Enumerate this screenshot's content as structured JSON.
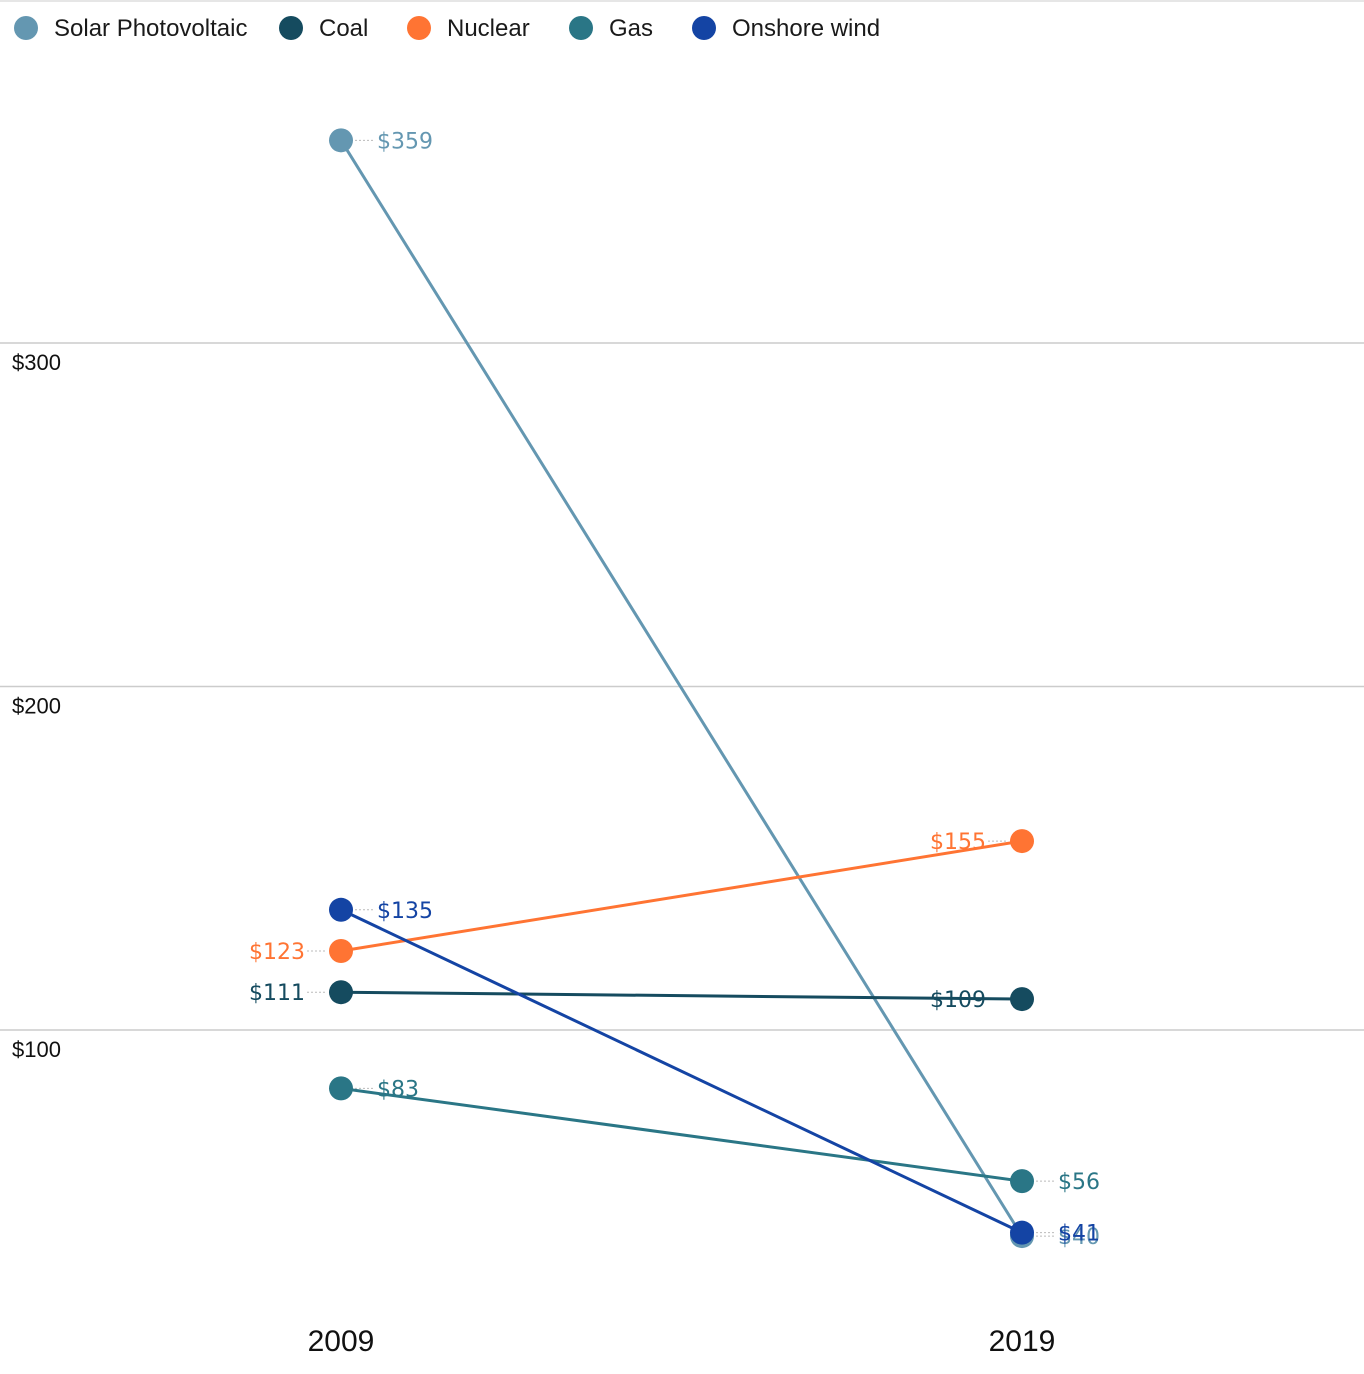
{
  "chart_data": {
    "type": "line",
    "title": "",
    "xlabel": "",
    "ylabel": "",
    "categories": [
      "2009",
      "2019"
    ],
    "ylim": [
      0,
      400
    ],
    "yticks": [
      100,
      200,
      300
    ],
    "ytick_labels": [
      "$100",
      "$200",
      "$300"
    ],
    "grid": true,
    "legend_position": "top-left",
    "series": [
      {
        "name": "Solar Photovoltaic",
        "color": "#6497b1",
        "values": [
          359,
          40
        ],
        "labels": [
          "$359",
          "$40"
        ]
      },
      {
        "name": "Coal",
        "color": "#154b5f",
        "values": [
          111,
          109
        ],
        "labels": [
          "$111",
          "$109"
        ]
      },
      {
        "name": "Nuclear",
        "color": "#ff7433",
        "values": [
          123,
          155
        ],
        "labels": [
          "$123",
          "$155"
        ]
      },
      {
        "name": "Gas",
        "color": "#2a7686",
        "values": [
          83,
          56
        ],
        "labels": [
          "$83",
          "$56"
        ]
      },
      {
        "name": "Onshore wind",
        "color": "#1444a4",
        "values": [
          135,
          41
        ],
        "labels": [
          "$135",
          "$41"
        ]
      }
    ]
  }
}
